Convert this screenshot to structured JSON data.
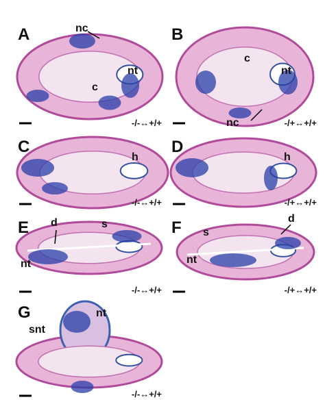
{
  "panels": [
    {
      "letter": "A",
      "labels": [
        "nc",
        "c",
        "nt"
      ],
      "genotype": "-/-↔+/+"
    },
    {
      "letter": "B",
      "labels": [
        "c",
        "nt",
        "nc"
      ],
      "genotype": "-/+↔+/+"
    },
    {
      "letter": "C",
      "labels": [
        "h"
      ],
      "genotype": "-/-↔+/+"
    },
    {
      "letter": "D",
      "labels": [
        "h"
      ],
      "genotype": "-/+↔+/+"
    },
    {
      "letter": "E",
      "labels": [
        "d",
        "s",
        "nt"
      ],
      "genotype": "-/-↔+/+"
    },
    {
      "letter": "F",
      "labels": [
        "s",
        "d",
        "nt"
      ],
      "genotype": "-/+↔+/+"
    },
    {
      "letter": "G",
      "labels": [
        "nt",
        "snt"
      ],
      "genotype": "-/-↔+/+"
    }
  ]
}
